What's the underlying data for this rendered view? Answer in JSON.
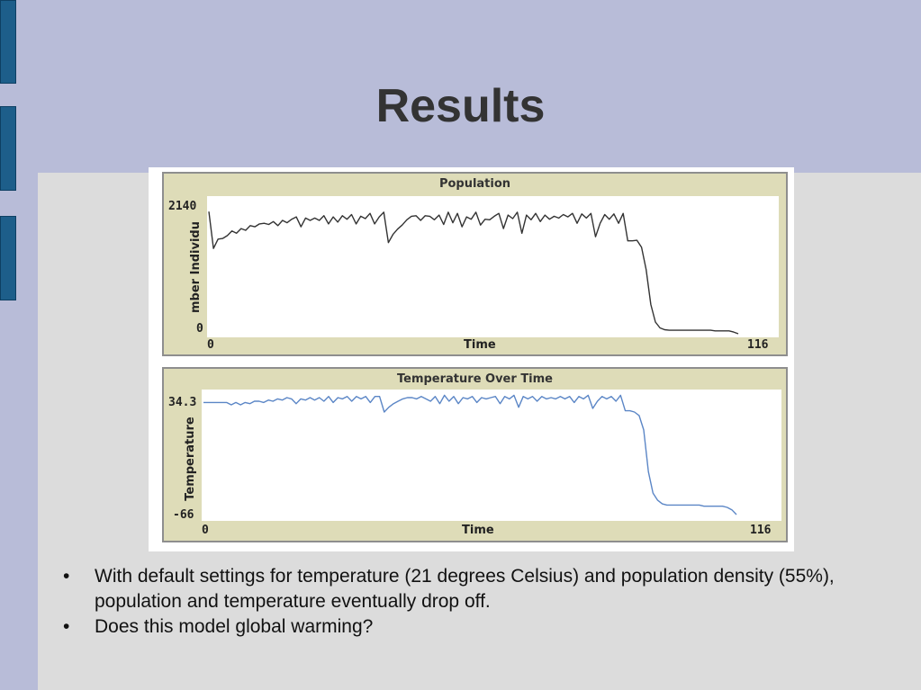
{
  "slide": {
    "title": "Results",
    "bullets": [
      "With default settings for temperature (21 degrees Celsius) and population density (55%), population and temperature eventually drop off.",
      "Does this model global warming?"
    ]
  },
  "colors": {
    "background": "#b8bcd8",
    "content_panel": "#dcdcdc",
    "plot_frame": "#dedcb8",
    "population_line": "#333333",
    "temperature_line": "#5b86c6",
    "side_tab": "#1d5e8a"
  },
  "chart_data": [
    {
      "type": "line",
      "title": "Population",
      "xlabel": "Time",
      "ylabel": "mber Individu",
      "xlim": [
        0,
        116
      ],
      "ylim": [
        0,
        2140
      ],
      "x_tick_labels": [
        "0",
        "116"
      ],
      "y_tick_labels": [
        "2140",
        "0"
      ],
      "grid": false,
      "series": [
        {
          "values": [
            2090,
            1460,
            1620,
            1630,
            1680,
            1760,
            1720,
            1800,
            1770,
            1850,
            1830,
            1880,
            1890,
            1870,
            1920,
            1850,
            1940,
            1900,
            1960,
            2000,
            1830,
            1980,
            1940,
            1980,
            1940,
            2020,
            1880,
            2000,
            1910,
            2020,
            1960,
            2040,
            1880,
            2010,
            1970,
            2060,
            1880,
            2000,
            2080,
            1560,
            1700,
            1790,
            1860,
            1950,
            2010,
            2020,
            1940,
            2020,
            2010,
            1950,
            2030,
            1870,
            2080,
            1900,
            2060,
            1830,
            2000,
            1960,
            2080,
            1860,
            1960,
            1950,
            2010,
            2060,
            1800,
            2030,
            1970,
            2080,
            1720,
            2030,
            1950,
            2060,
            1920,
            2030,
            1960,
            2010,
            1980,
            2040,
            2000,
            2060,
            1890,
            2050,
            1980,
            2060,
            1660,
            1890,
            2040,
            1960,
            2050,
            1890,
            2060,
            1590,
            1590,
            1600,
            1480,
            1100,
            500,
            200,
            100,
            70,
            60,
            60,
            60,
            60,
            60,
            60,
            60,
            60,
            60,
            60,
            50,
            50,
            50,
            50,
            30,
            0
          ]
        }
      ]
    },
    {
      "type": "line",
      "title": "Temperature Over Time",
      "xlabel": "Time",
      "ylabel": "Temperature",
      "xlim": [
        0,
        116
      ],
      "ylim": [
        -66,
        34.3
      ],
      "x_tick_labels": [
        "0",
        "116"
      ],
      "y_tick_labels": [
        "34.3",
        "-66"
      ],
      "grid": false,
      "series": [
        {
          "values": [
            28,
            28,
            28,
            28,
            28,
            28,
            26,
            28,
            26,
            28,
            27,
            29,
            29,
            28,
            30,
            29,
            31,
            30,
            32,
            31,
            27,
            31,
            30,
            32,
            30,
            32,
            29,
            33,
            28,
            32,
            31,
            33,
            29,
            33,
            31,
            33,
            28,
            33,
            33,
            20,
            24,
            27,
            29,
            31,
            32,
            32,
            31,
            33,
            31,
            29,
            33,
            27,
            34,
            29,
            33,
            27,
            32,
            31,
            33,
            28,
            32,
            31,
            32,
            33,
            27,
            33,
            31,
            34,
            24,
            33,
            31,
            33,
            29,
            33,
            31,
            32,
            31,
            33,
            31,
            33,
            28,
            33,
            31,
            34,
            23,
            29,
            33,
            31,
            33,
            29,
            34,
            21,
            21,
            20,
            17,
            5,
            -30,
            -48,
            -54,
            -57,
            -58,
            -58,
            -58,
            -58,
            -58,
            -58,
            -58,
            -58,
            -59,
            -59,
            -59,
            -59,
            -59,
            -60,
            -62,
            -66
          ]
        }
      ]
    }
  ]
}
